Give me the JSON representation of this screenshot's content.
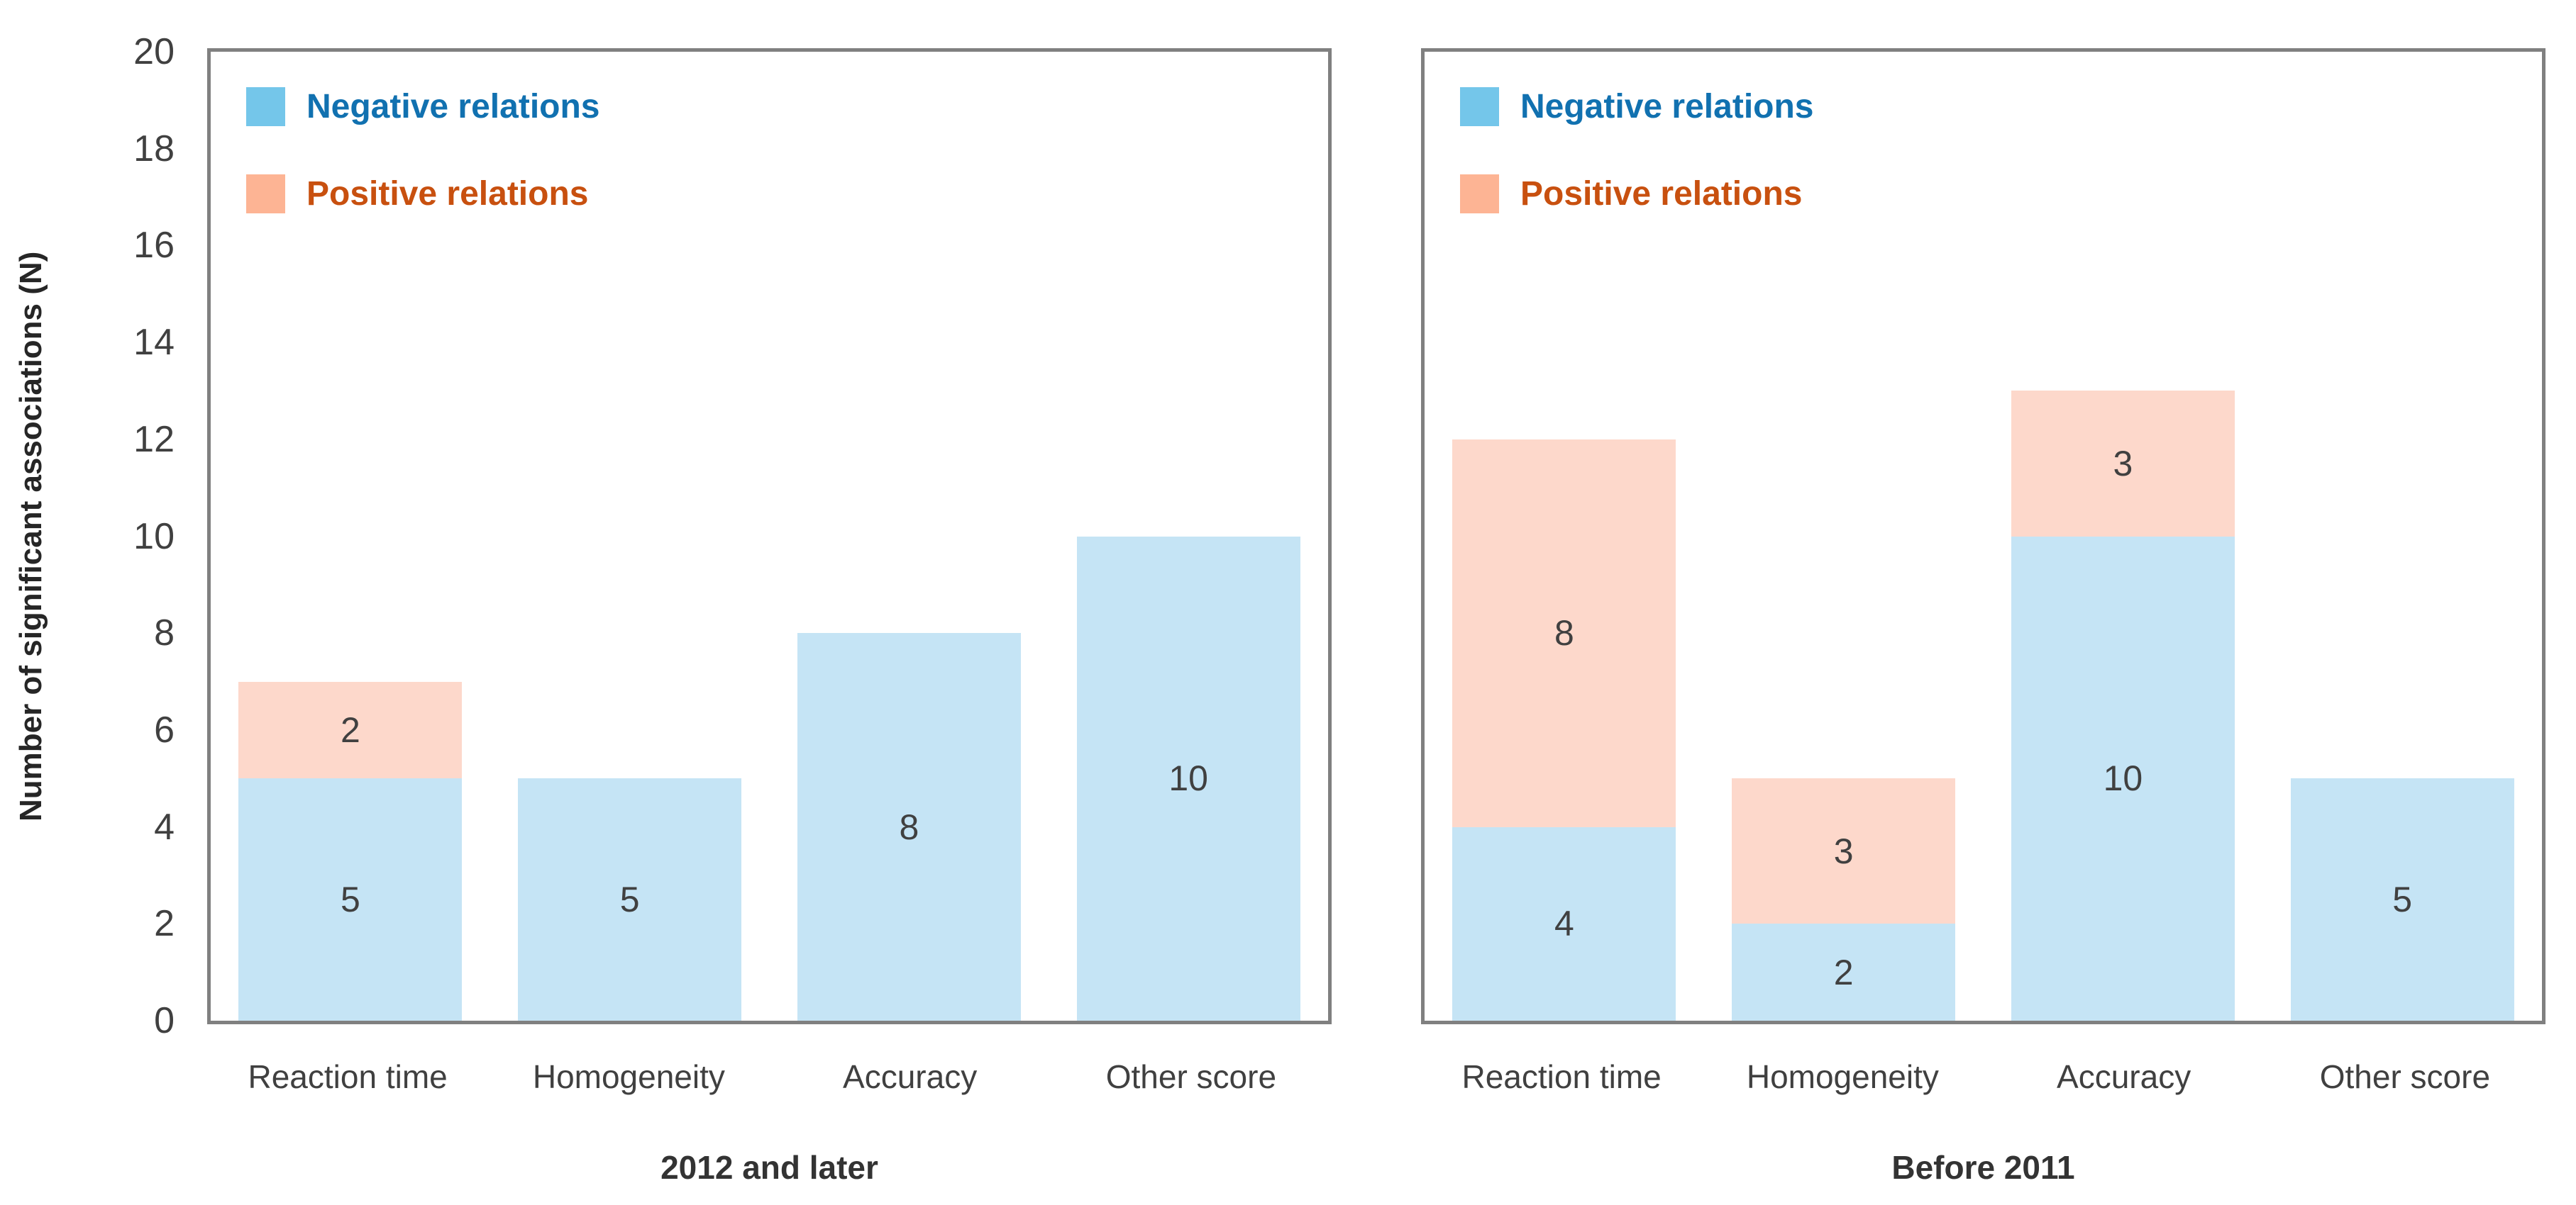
{
  "y_axis": {
    "title": "Number of significant associations (N)",
    "tick_labels": [
      0,
      2,
      4,
      6,
      8,
      10,
      12,
      14,
      16,
      18,
      20
    ],
    "min": 0,
    "max": 20
  },
  "legend": {
    "items": [
      {
        "id": "negative",
        "label": "Negative relations",
        "swatch_color": "#74C6EA",
        "text_color": "#1171B0"
      },
      {
        "id": "positive",
        "label": "Positive relations",
        "swatch_color": "#FDB494",
        "text_color": "#C8500F"
      }
    ]
  },
  "colors": {
    "negative_fill": "#C5E4F5",
    "positive_fill": "#FDD8CB",
    "axis_line": "#808080",
    "tick_text": "#404040",
    "category_text": "#404040",
    "data_label_text": "#404040",
    "group_title_text": "#333333",
    "background": "#FFFFFF"
  },
  "chart_data": [
    {
      "type": "bar",
      "stacked": true,
      "group_title": "2012 and later",
      "categories": [
        "Reaction time",
        "Homogeneity",
        "Accuracy",
        "Other score"
      ],
      "series": [
        {
          "name": "Negative relations",
          "values": [
            5,
            5,
            8,
            10
          ]
        },
        {
          "name": "Positive relations",
          "values": [
            2,
            0,
            0,
            0
          ]
        }
      ],
      "ylim": [
        0,
        20
      ],
      "grid": false,
      "legend_position": "top-left-inside"
    },
    {
      "type": "bar",
      "stacked": true,
      "group_title": "Before 2011",
      "categories": [
        "Reaction time",
        "Homogeneity",
        "Accuracy",
        "Other score"
      ],
      "series": [
        {
          "name": "Negative relations",
          "values": [
            4,
            2,
            10,
            5
          ]
        },
        {
          "name": "Positive relations",
          "values": [
            8,
            3,
            3,
            0
          ]
        }
      ],
      "ylim": [
        0,
        20
      ],
      "grid": false,
      "legend_position": "top-left-inside"
    }
  ]
}
